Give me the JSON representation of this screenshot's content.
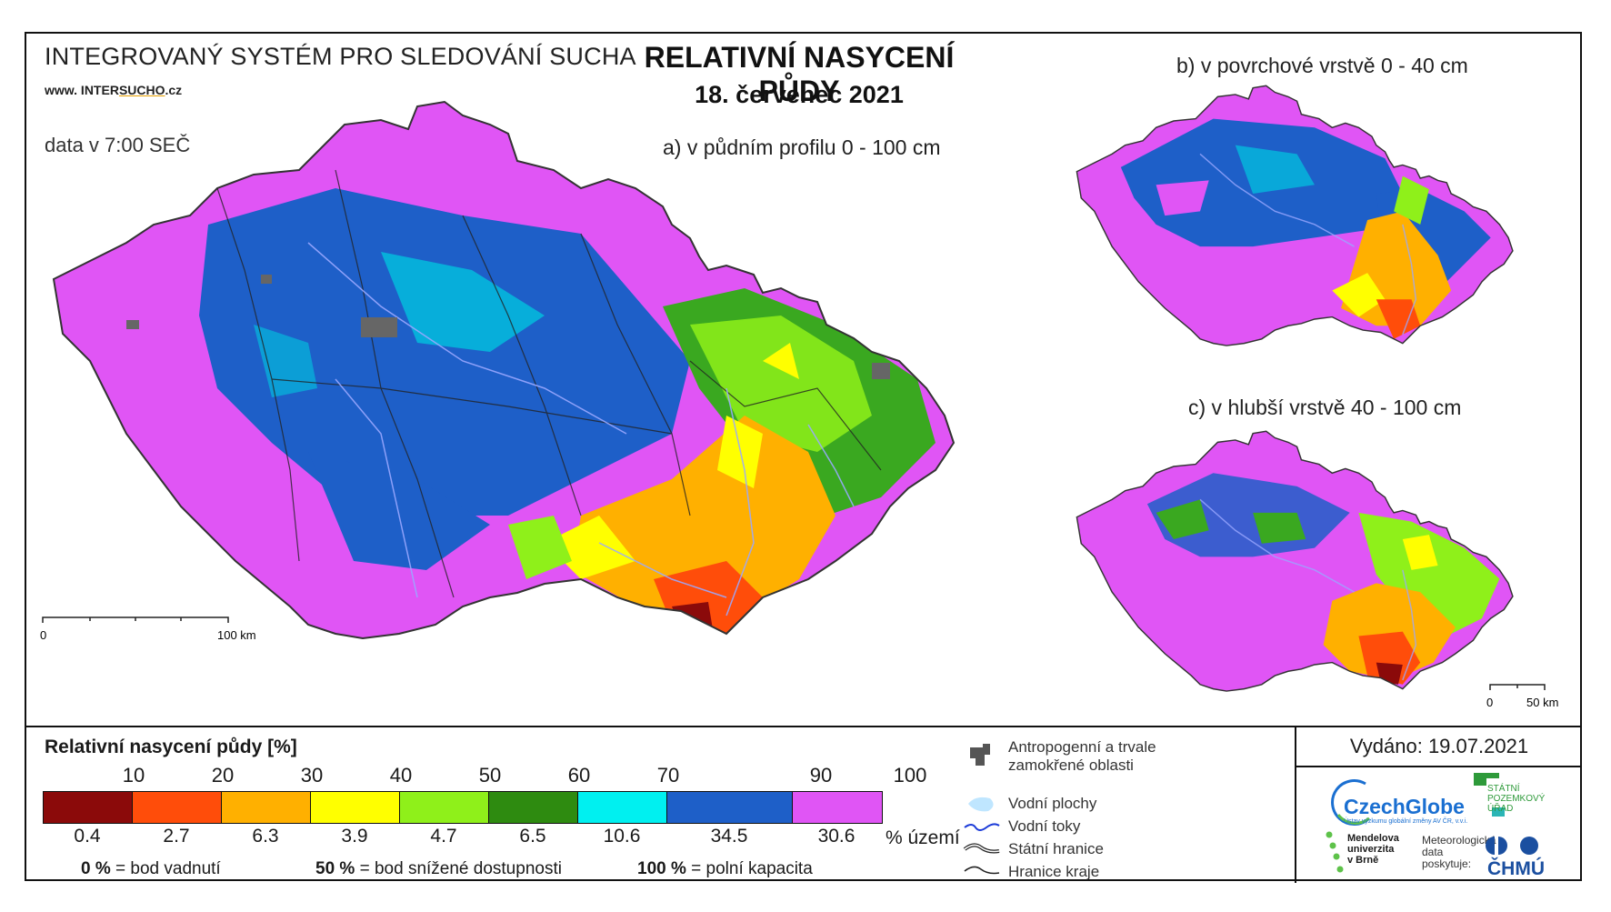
{
  "header": {
    "system_title": "INTEGROVANÝ SYSTÉM PRO SLEDOVÁNÍ SUCHA",
    "website_prefix": "www. INTER",
    "website_underlined": "SUCHO",
    "website_suffix": ".cz",
    "data_time": "data v 7:00 SEČ",
    "main_title": "RELATIVNÍ NASYCENÍ PŮDY",
    "date": "18. červenec 2021"
  },
  "maps": {
    "a": {
      "subtitle": "a) v půdním profilu 0 - 100 cm",
      "scale_start": "0",
      "scale_end": "100 km"
    },
    "b": {
      "subtitle": "b) v povrchové vrstvě 0 - 40 cm"
    },
    "c": {
      "subtitle": "c) v hlubší vrstvě 40 - 100 cm",
      "scale_start": "0",
      "scale_end": "50 km"
    }
  },
  "legend": {
    "title": "Relativní nasycení půdy [%]",
    "thresholds": [
      "10",
      "20",
      "30",
      "40",
      "50",
      "60",
      "70",
      "90",
      "100"
    ],
    "classes": [
      {
        "color": "#8b0a0a",
        "area_pct": "0.4"
      },
      {
        "color": "#ff4d0a",
        "area_pct": "2.7"
      },
      {
        "color": "#ffb000",
        "area_pct": "6.3"
      },
      {
        "color": "#ffff00",
        "area_pct": "3.9"
      },
      {
        "color": "#8ff01a",
        "area_pct": "4.7"
      },
      {
        "color": "#2e8b10",
        "area_pct": "6.5"
      },
      {
        "color": "#00f0f0",
        "area_pct": "10.6"
      },
      {
        "color": "#1e5fc8",
        "area_pct": "34.5"
      },
      {
        "color": "#e055f5",
        "area_pct": "30.6"
      }
    ],
    "area_unit": "% území",
    "definitions": [
      {
        "value": "0 %",
        "text": "= bod vadnutí"
      },
      {
        "value": "50 %",
        "text": "= bod snížené dostupnosti"
      },
      {
        "value": "100 %",
        "text": "= polní kapacita"
      }
    ]
  },
  "symbols": {
    "anthropogenic": "Antropogenní a trvale zamokřené oblasti",
    "anthropogenic_line1": "Antropogenní a trvale",
    "anthropogenic_line2": "zamokřené oblasti",
    "water_bodies": "Vodní plochy",
    "rivers": "Vodní toky",
    "state_border": "Státní hranice",
    "region_border": "Hranice kraje"
  },
  "footer": {
    "issued": "Vydáno: 19.07.2021",
    "logos": {
      "czechglobe": "CzechGlobe",
      "czechglobe_sub": "Ústav výzkumu globální změny AV ČR, v.v.i.",
      "spu_line1": "STÁTNÍ",
      "spu_line2": "POZEMKOVÝ",
      "spu_line3": "ÚŘAD",
      "mendel_line1": "Mendelova",
      "mendel_line2": "univerzita",
      "mendel_line3": "v Brně",
      "meteo_line1": "Meteorologická",
      "meteo_line2": "data",
      "meteo_line3": "poskytuje:",
      "chmu": "ČHMÚ"
    }
  }
}
